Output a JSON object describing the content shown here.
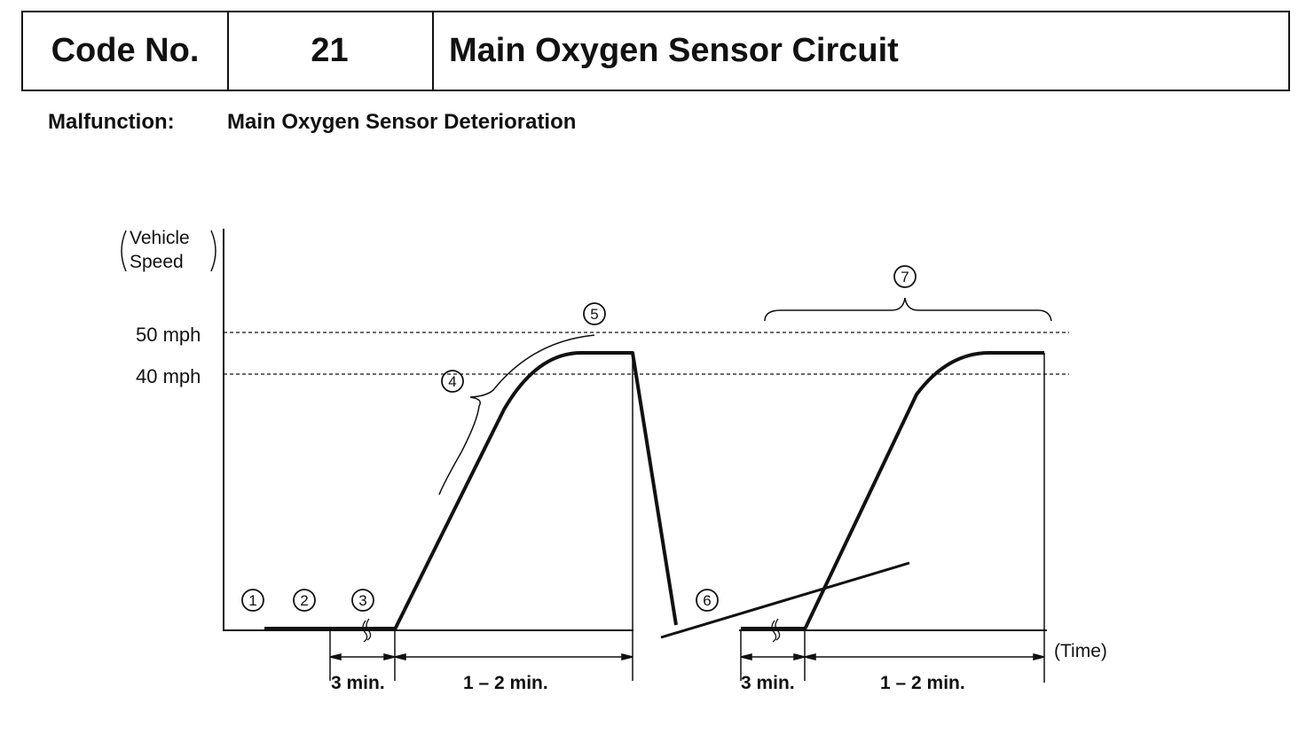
{
  "header": {
    "code_label": "Code No.",
    "code_value": "21",
    "title": "Main Oxygen Sensor Circuit"
  },
  "malfunction": {
    "label": "Malfunction:",
    "value": "Main Oxygen Sensor Deterioration"
  },
  "diagram": {
    "y_axis_label_line1": "Vehicle",
    "y_axis_label_line2": "Speed",
    "x_axis_label": "(Time)",
    "speed_levels": [
      "50 mph",
      "40 mph"
    ],
    "durations": [
      "3 min.",
      "1 – 2 min.",
      "3 min.",
      "1 – 2 min."
    ],
    "steps": [
      "1",
      "2",
      "3",
      "4",
      "5",
      "6",
      "7"
    ]
  }
}
